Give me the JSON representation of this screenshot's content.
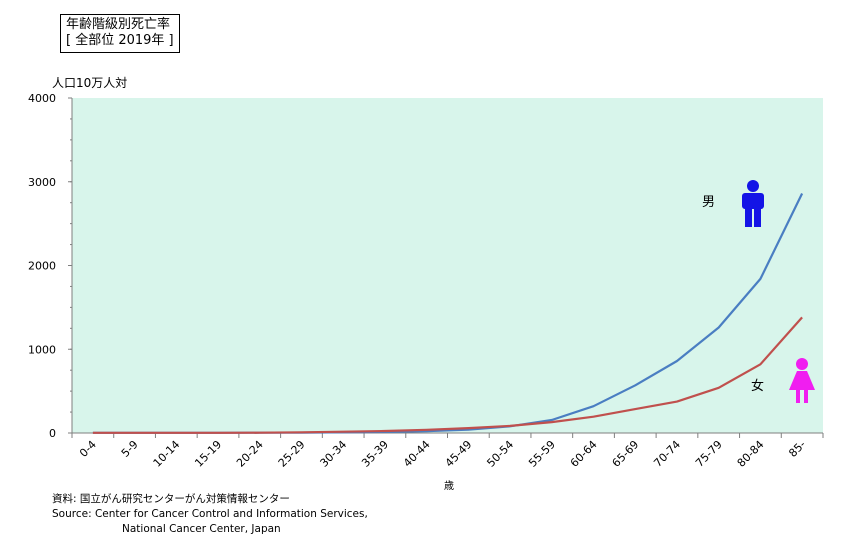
{
  "chart_data": {
    "type": "line",
    "title": "年齢階級別死亡率",
    "subtitle": "[ 全部位 2019年 ]",
    "ylabel": "人口10万人対",
    "xlabel": "歳",
    "ylim": [
      0,
      4000
    ],
    "yticks": [
      "0",
      "1000",
      "2000",
      "3000",
      "4000"
    ],
    "categories": [
      "0-4",
      "5-9",
      "10-14",
      "15-19",
      "20-24",
      "25-29",
      "30-34",
      "35-39",
      "40-44",
      "45-49",
      "50-54",
      "55-59",
      "60-64",
      "65-69",
      "70-74",
      "75-79",
      "80-84",
      "85-"
    ],
    "series": [
      {
        "name": "男",
        "color": "#4a7ec2",
        "values": [
          2,
          2,
          2,
          2,
          3,
          5,
          8,
          13,
          22,
          40,
          80,
          155,
          320,
          570,
          860,
          1260,
          1840,
          2860
        ]
      },
      {
        "name": "女",
        "color": "#c0504d",
        "values": [
          2,
          2,
          2,
          2,
          4,
          8,
          15,
          24,
          38,
          58,
          85,
          130,
          195,
          285,
          375,
          540,
          820,
          1380
        ]
      }
    ],
    "plot_background": "#d8f5eb",
    "legend_icons": [
      {
        "label": "男",
        "icon": "male-figure-icon",
        "color": "#1414e6"
      },
      {
        "label": "女",
        "icon": "female-figure-icon",
        "color": "#f01ef0"
      }
    ]
  },
  "source": {
    "line1": "資料:  国立がん研究センターがん対策情報センター",
    "line2": "Source: Center for Cancer Control and Information Services,",
    "line3": "National Cancer Center, Japan"
  }
}
